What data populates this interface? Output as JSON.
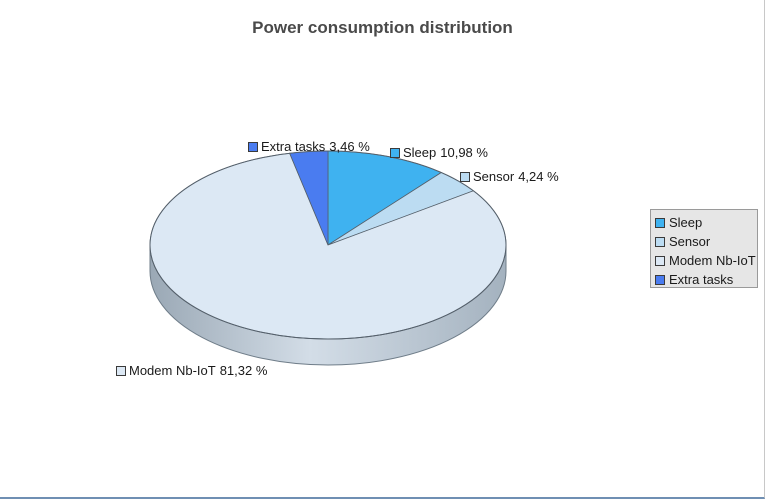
{
  "chart_data": {
    "type": "pie",
    "title": "Power consumption distribution",
    "categories": [
      "Sleep",
      "Sensor",
      "Modem Nb-IoT",
      "Extra tasks"
    ],
    "values": [
      10.98,
      4.24,
      81.32,
      3.46
    ],
    "value_labels": [
      "10,98 %",
      "4,24 %",
      "81,32 %",
      "3,46 %"
    ],
    "colors": [
      "#3fb2f0",
      "#bcdcf2",
      "#dce8f4",
      "#4a7cf0"
    ],
    "style": "3d",
    "legend_position": "right"
  }
}
